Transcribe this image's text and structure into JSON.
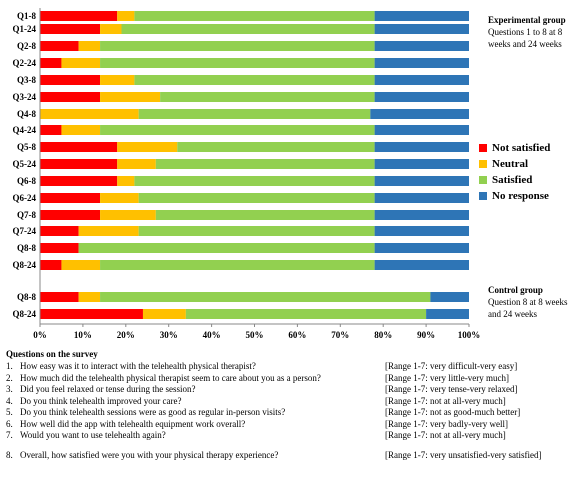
{
  "chart_data": {
    "type": "bar",
    "orientation": "horizontal",
    "stacked": true,
    "percent_stacked": true,
    "categories": [
      "Q1-8",
      "Q1-24",
      "Q2-8",
      "Q2-24",
      "Q3-8",
      "Q3-24",
      "Q4-8",
      "Q4-24",
      "Q5-8",
      "Q5-24",
      "Q6-8",
      "Q6-24",
      "Q7-8",
      "Q7-24",
      "Q8-8",
      "Q8-24",
      "Q8-8",
      "Q8-24"
    ],
    "groups": [
      "experimental",
      "experimental",
      "experimental",
      "experimental",
      "experimental",
      "experimental",
      "experimental",
      "experimental",
      "experimental",
      "experimental",
      "experimental",
      "experimental",
      "experimental",
      "experimental",
      "experimental",
      "experimental",
      "control",
      "control"
    ],
    "series": [
      {
        "name": "Not satisfied",
        "color": "#ff0000",
        "values": [
          18,
          14,
          9,
          5,
          14,
          14,
          0,
          5,
          18,
          18,
          18,
          14,
          14,
          9,
          9,
          5,
          9,
          24
        ]
      },
      {
        "name": "Neutral",
        "color": "#ffc000",
        "values": [
          4,
          5,
          5,
          9,
          8,
          14,
          23,
          9,
          14,
          9,
          4,
          9,
          13,
          14,
          0,
          9,
          5,
          10
        ]
      },
      {
        "name": "Satisfied",
        "color": "#92d050",
        "values": [
          56,
          59,
          64,
          64,
          56,
          50,
          54,
          64,
          46,
          51,
          56,
          55,
          51,
          55,
          69,
          64,
          77,
          56
        ]
      },
      {
        "name": "No response",
        "color": "#2e75b6",
        "values": [
          22,
          22,
          22,
          22,
          22,
          22,
          23,
          22,
          22,
          22,
          22,
          22,
          22,
          22,
          22,
          22,
          9,
          10
        ]
      }
    ],
    "x_ticks": [
      "0%",
      "10%",
      "20%",
      "30%",
      "40%",
      "50%",
      "60%",
      "70%",
      "80%",
      "90%",
      "100%"
    ],
    "xlim": [
      0,
      100
    ],
    "grid": false,
    "legend_position": "right"
  },
  "legend": {
    "items": [
      {
        "label": "Not satisfied",
        "color": "#ff0000"
      },
      {
        "label": "Neutral",
        "color": "#ffc000"
      },
      {
        "label": "Satisfied",
        "color": "#92d050"
      },
      {
        "label": "No response",
        "color": "#2e75b6"
      }
    ]
  },
  "experimental_note": {
    "title": "Experimental group",
    "line1": "Questions 1 to 8 at 8",
    "line2": "weeks and 24 weeks"
  },
  "control_note": {
    "title": "Control group",
    "line1": "Question 8 at 8 weeks",
    "line2": "and 24 weeks"
  },
  "questions": {
    "heading": "Questions on the survey",
    "items": [
      {
        "num": "1.",
        "text": "How easy was it to interact with the telehealth physical therapist?",
        "range": "[Range 1-7: very difficult-very easy]"
      },
      {
        "num": "2.",
        "text": "How much did the telehealth physical therapist seem to care about you as a person?",
        "range": "[Range 1-7: very little-very much]"
      },
      {
        "num": "3.",
        "text": "Did you feel relaxed or tense during the session?",
        "range": "[Range 1-7: very tense-very relaxed]"
      },
      {
        "num": "4.",
        "text": "Do you think telehealth improved your care?",
        "range": "[Range 1-7: not at all-very much]"
      },
      {
        "num": "5.",
        "text": "Do you think telehealth sessions were as good as regular in-person visits?",
        "range": "[Range 1-7: not as good-much better]"
      },
      {
        "num": "6.",
        "text": "How well did the app with telehealth equipment work overall?",
        "range": "[Range 1-7: very badly-very well]"
      },
      {
        "num": "7.",
        "text": "Would you want to use telehealth again?",
        "range": "[Range 1-7: not at all-very much]"
      },
      {
        "num": "8.",
        "text": "Overall, how satisfied were you with your physical therapy experience?",
        "range": "[Range 1-7: very unsatisfied-very satisfied]"
      }
    ]
  }
}
